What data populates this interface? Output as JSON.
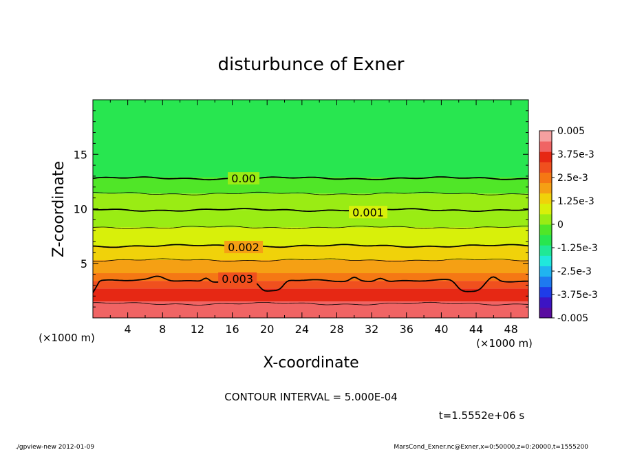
{
  "chart_data": {
    "type": "contour",
    "title": "disturbunce of Exner",
    "xlabel": "X-coordinate",
    "ylabel": "Z-coordinate",
    "x_unit_left": "(×1000 m)",
    "x_unit_right": "(×1000 m)",
    "xlim": [
      0,
      50
    ],
    "ylim": [
      0,
      20
    ],
    "xticks": [
      4,
      8,
      12,
      16,
      20,
      24,
      28,
      32,
      36,
      40,
      44,
      48
    ],
    "yticks": [
      5,
      10,
      15
    ],
    "contour_interval_label": "CONTOUR INTERVAL = 5.000E-04",
    "time_label": "t=1.5552e+06 s",
    "contour_labels": [
      {
        "text": "0.00",
        "x": 17.3,
        "z": 12.8
      },
      {
        "text": "0.001",
        "x": 31.6,
        "z": 9.7
      },
      {
        "text": "0.002",
        "x": 17.3,
        "z": 6.5
      },
      {
        "text": "0.003",
        "x": 16.6,
        "z": 3.6
      }
    ],
    "colorbar": {
      "min": -0.005,
      "max": 0.005,
      "tick_labels": [
        "0.005",
        "3.75e-3",
        "2.5e-3",
        "1.25e-3",
        "0",
        "-1.25e-3",
        "-2.5e-3",
        "-3.75e-3",
        "-0.005"
      ],
      "colors": [
        "#5a0ca0",
        "#3c14c4",
        "#1e3ce8",
        "#1e7af0",
        "#20b4f0",
        "#20e8dc",
        "#20e896",
        "#28e650",
        "#50e628",
        "#9aec14",
        "#d8f00a",
        "#f0d20a",
        "#f5a014",
        "#f57814",
        "#f0501e",
        "#e62814",
        "#f06464",
        "#f5a0a0"
      ]
    },
    "field_levels": [
      {
        "z_top": 1.5,
        "value": 0.004
      },
      {
        "z_top": 2.7,
        "value": 0.0035
      },
      {
        "z_top": 3.4,
        "value": 0.003
      },
      {
        "z_top": 4.1,
        "value": 0.0025
      },
      {
        "z_top": 5.3,
        "value": 0.002
      },
      {
        "z_top": 6.6,
        "value": 0.0015
      },
      {
        "z_top": 8.3,
        "value": 0.001
      },
      {
        "z_top": 9.9,
        "value": 0.0005
      },
      {
        "z_top": 11.4,
        "value": 0.0
      },
      {
        "z_top": 12.9,
        "value": -0.0005
      },
      {
        "z_top": 20.0,
        "value": -0.001
      }
    ],
    "contour_lines": [
      {
        "value": 0.0,
        "z": 12.8,
        "thick": true
      },
      {
        "value": 0.0005,
        "z": 11.4,
        "thick": false
      },
      {
        "value": 0.001,
        "z": 9.9,
        "thick": true
      },
      {
        "value": 0.0015,
        "z": 8.3,
        "thick": false
      },
      {
        "value": 0.002,
        "z": 6.6,
        "thick": true
      },
      {
        "value": 0.0025,
        "z": 5.3,
        "thick": false
      },
      {
        "value": 0.003,
        "z": 3.4,
        "thick": true,
        "wavy": true
      },
      {
        "value": 0.0035,
        "z": 1.3,
        "thick": false
      }
    ]
  },
  "footer": {
    "left": "./gpview-new 2012-01-09",
    "right": "MarsCond_Exner.nc@Exner,x=0:50000,z=0:20000,t=1555200"
  }
}
